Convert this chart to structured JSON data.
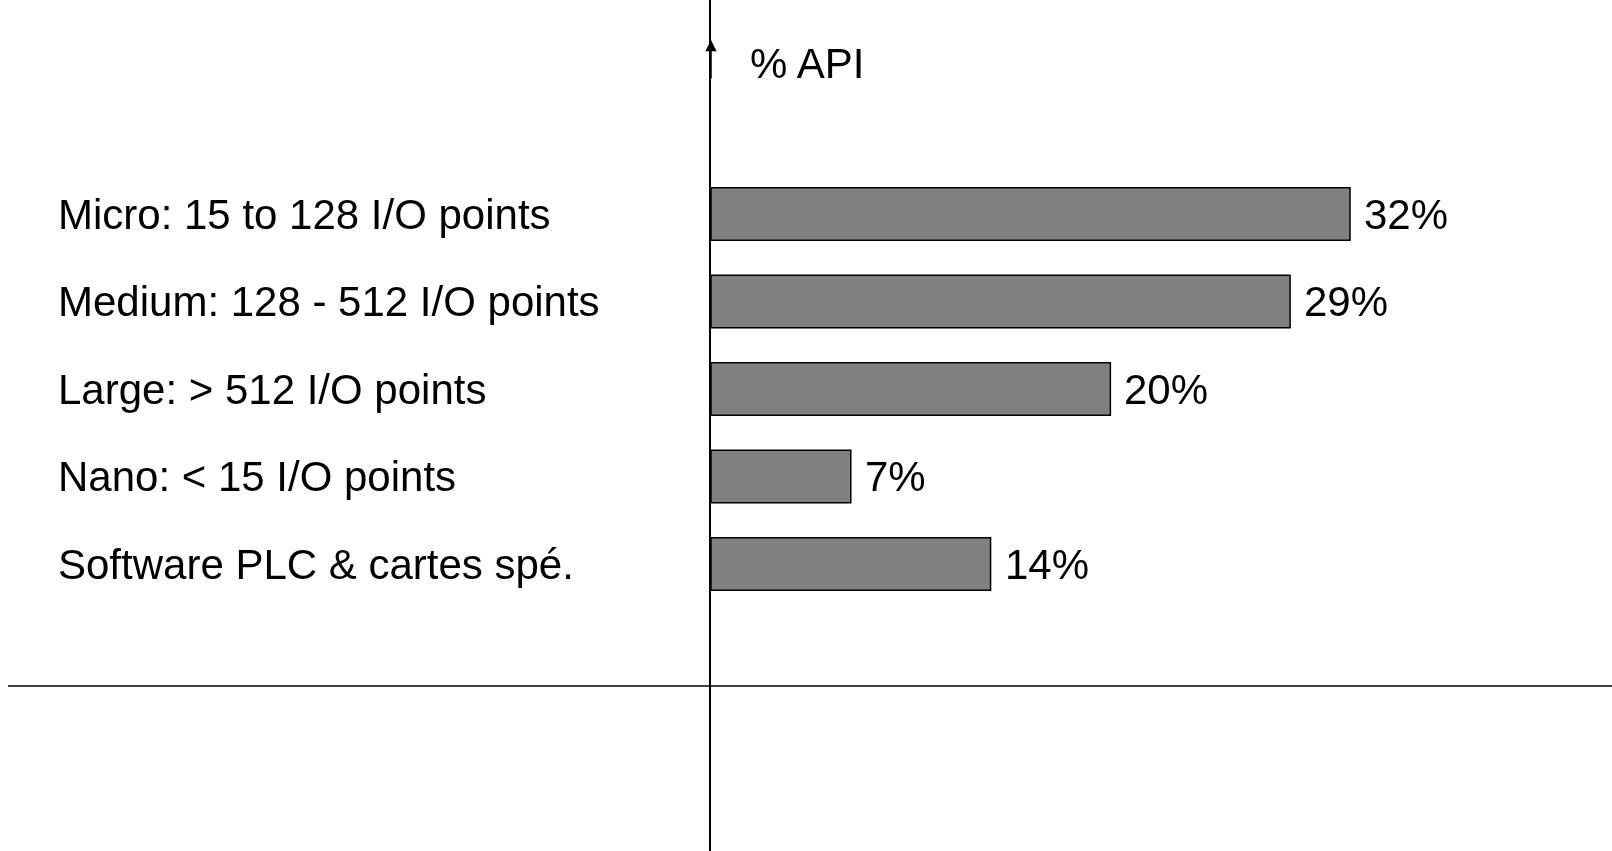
{
  "chart_data": {
    "type": "bar",
    "orientation": "horizontal",
    "ylabel": "% API",
    "categories": [
      "Micro: 15 to 128 I/O points",
      "Medium: 128 - 512 I/O points",
      "Large: > 512 I/O points",
      "Nano: < 15 I/O points",
      "Software PLC & cartes spé."
    ],
    "values": [
      32,
      29,
      20,
      7,
      14
    ],
    "color": "#808080",
    "value_labels": [
      "32%",
      "29%",
      "20%",
      "7%",
      "14%"
    ]
  }
}
